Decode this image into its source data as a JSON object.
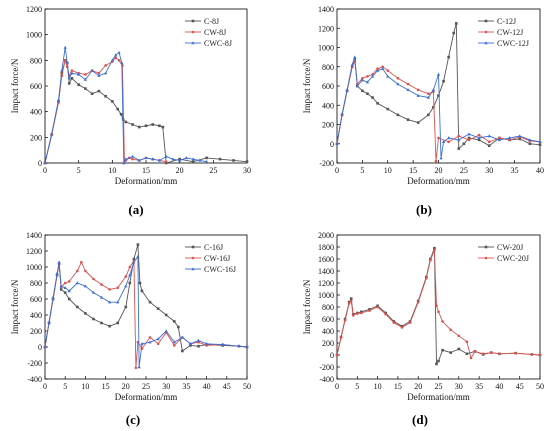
{
  "chart_data": [
    {
      "type": "line",
      "panel_label": "(a)",
      "xlabel": "Deformation/mm",
      "ylabel": "Impact force/N",
      "xlim": [
        0,
        30
      ],
      "ylim": [
        0,
        1200
      ],
      "xticks": [
        0,
        5,
        10,
        15,
        20,
        25,
        30
      ],
      "yticks": [
        0,
        200,
        400,
        600,
        800,
        1000,
        1200
      ],
      "legend_position": "top-right",
      "series": [
        {
          "name": "C-8J",
          "color": "#555555",
          "marker": "square",
          "x": [
            0,
            1,
            2,
            2.5,
            3,
            3.3,
            3.6,
            4,
            5,
            6,
            7,
            8,
            9,
            10,
            10.8,
            11.3,
            11.6,
            12,
            13,
            14,
            15,
            16,
            17,
            17.5,
            18,
            20,
            22,
            24,
            26,
            28,
            30
          ],
          "y": [
            0,
            220,
            480,
            700,
            800,
            780,
            620,
            660,
            610,
            580,
            540,
            560,
            520,
            480,
            420,
            380,
            340,
            320,
            300,
            280,
            290,
            300,
            290,
            280,
            0,
            30,
            10,
            40,
            30,
            20,
            10
          ]
        },
        {
          "name": "CW-8J",
          "color": "#d9534f",
          "marker": "circle",
          "x": [
            0,
            1,
            2,
            2.5,
            3,
            3.3,
            3.6,
            4,
            5,
            6,
            7,
            8,
            9,
            10,
            10.5,
            11,
            11.5,
            11.8,
            12,
            12.5,
            13,
            14,
            15,
            16,
            17,
            18
          ],
          "y": [
            0,
            220,
            470,
            680,
            800,
            750,
            680,
            720,
            700,
            690,
            720,
            700,
            760,
            790,
            820,
            800,
            760,
            0,
            20,
            40,
            30,
            20,
            40,
            30,
            20,
            10
          ]
        },
        {
          "name": "CWC-8J",
          "color": "#3b6fd6",
          "marker": "triangle",
          "x": [
            0,
            1,
            2,
            2.5,
            3,
            3.3,
            3.6,
            4,
            5,
            6,
            7,
            8,
            9,
            10,
            10.5,
            11,
            11.4,
            11.7,
            12,
            13,
            14,
            15,
            16,
            17,
            18,
            19,
            20,
            21,
            22,
            23,
            24
          ],
          "y": [
            0,
            230,
            490,
            720,
            900,
            780,
            660,
            700,
            690,
            650,
            720,
            680,
            700,
            800,
            840,
            860,
            780,
            0,
            30,
            50,
            20,
            40,
            30,
            20,
            50,
            30,
            20,
            40,
            30,
            20,
            10
          ]
        }
      ]
    },
    {
      "type": "line",
      "panel_label": "(b)",
      "xlabel": "Deformation/mm",
      "ylabel": "Impact force/N",
      "xlim": [
        0,
        40
      ],
      "ylim": [
        -200,
        1400
      ],
      "xticks": [
        0,
        5,
        10,
        15,
        20,
        25,
        30,
        35,
        40
      ],
      "yticks": [
        -200,
        0,
        200,
        400,
        600,
        800,
        1000,
        1200,
        1400
      ],
      "legend_position": "top-right",
      "series": [
        {
          "name": "C-12J",
          "color": "#555555",
          "marker": "square",
          "x": [
            0,
            1,
            2,
            3,
            3.5,
            4,
            5,
            6,
            7,
            8,
            10,
            12,
            14,
            16,
            18,
            19,
            20,
            21,
            22,
            23,
            23.5,
            24,
            25,
            26,
            28,
            30,
            32,
            34,
            36,
            38,
            40
          ],
          "y": [
            0,
            300,
            550,
            800,
            880,
            600,
            550,
            520,
            480,
            420,
            360,
            300,
            250,
            220,
            300,
            380,
            500,
            650,
            900,
            1150,
            1250,
            -50,
            0,
            60,
            40,
            -20,
            60,
            40,
            50,
            0,
            -10
          ]
        },
        {
          "name": "CW-12J",
          "color": "#d9534f",
          "marker": "circle",
          "x": [
            0,
            1,
            2,
            3,
            3.5,
            4,
            5,
            6,
            7,
            8,
            9,
            10,
            12,
            14,
            16,
            18,
            19,
            19.5,
            20,
            22,
            24,
            26,
            28,
            30,
            32,
            34,
            36,
            38,
            40
          ],
          "y": [
            0,
            300,
            550,
            800,
            860,
            620,
            680,
            700,
            720,
            780,
            800,
            760,
            680,
            620,
            560,
            520,
            540,
            -180,
            60,
            20,
            80,
            40,
            90,
            20,
            60,
            40,
            70,
            30,
            20
          ]
        },
        {
          "name": "CWC-12J",
          "color": "#3b6fd6",
          "marker": "triangle",
          "x": [
            0,
            1,
            2,
            3,
            3.5,
            4,
            5,
            6,
            7,
            8,
            9,
            10,
            12,
            14,
            16,
            18,
            19,
            20,
            20.5,
            21,
            22,
            24,
            26,
            28,
            30,
            32,
            34,
            36,
            38,
            40
          ],
          "y": [
            0,
            310,
            560,
            820,
            900,
            600,
            660,
            640,
            700,
            760,
            780,
            700,
            620,
            560,
            500,
            480,
            560,
            720,
            -150,
            20,
            60,
            40,
            100,
            60,
            80,
            40,
            60,
            80,
            40,
            20
          ]
        }
      ]
    },
    {
      "type": "line",
      "panel_label": "(c)",
      "xlabel": "Deformation/mm",
      "ylabel": "Impact force/N",
      "xlim": [
        0,
        50
      ],
      "ylim": [
        -400,
        1400
      ],
      "xticks": [
        0,
        5,
        10,
        15,
        20,
        25,
        30,
        35,
        40,
        45,
        50
      ],
      "yticks": [
        -400,
        -200,
        0,
        200,
        400,
        600,
        800,
        1000,
        1200,
        1400
      ],
      "legend_position": "top-right",
      "series": [
        {
          "name": "C-16J",
          "color": "#555555",
          "marker": "square",
          "x": [
            0,
            1,
            2,
            3,
            3.5,
            4,
            5,
            6,
            8,
            10,
            12,
            14,
            16,
            18,
            20,
            21,
            22,
            23,
            23.5,
            24,
            26,
            28,
            30,
            32,
            33,
            34,
            36,
            38,
            40,
            44,
            48,
            50
          ],
          "y": [
            0,
            300,
            600,
            900,
            1040,
            720,
            680,
            600,
            500,
            420,
            350,
            300,
            260,
            300,
            500,
            800,
            1100,
            1280,
            800,
            700,
            560,
            480,
            400,
            320,
            250,
            -50,
            20,
            10,
            30,
            20,
            10,
            0
          ]
        },
        {
          "name": "CW-16J",
          "color": "#d9534f",
          "marker": "circle",
          "x": [
            0,
            1,
            2,
            3,
            3.5,
            4,
            5,
            6,
            8,
            9,
            10,
            12,
            14,
            16,
            18,
            20,
            21,
            22,
            22.5,
            23,
            24,
            26,
            28,
            30,
            32,
            34,
            36,
            38,
            40,
            44,
            48,
            50
          ],
          "y": [
            0,
            300,
            600,
            900,
            1040,
            750,
            800,
            820,
            950,
            1060,
            950,
            850,
            780,
            720,
            740,
            880,
            1000,
            1080,
            -260,
            60,
            -20,
            120,
            40,
            180,
            20,
            120,
            40,
            60,
            20,
            30,
            10,
            0
          ]
        },
        {
          "name": "CWC-16J",
          "color": "#3b6fd6",
          "marker": "triangle",
          "x": [
            0,
            1,
            2,
            3,
            3.5,
            4,
            5,
            6,
            8,
            10,
            12,
            14,
            16,
            18,
            20,
            21,
            22,
            23,
            23.3,
            24,
            26,
            28,
            30,
            32,
            34,
            36,
            38,
            40,
            44,
            48,
            50
          ],
          "y": [
            0,
            310,
            620,
            920,
            1060,
            760,
            740,
            700,
            800,
            760,
            680,
            620,
            560,
            560,
            760,
            900,
            1060,
            1130,
            -250,
            40,
            60,
            100,
            200,
            60,
            120,
            40,
            80,
            40,
            30,
            10,
            0
          ]
        }
      ]
    },
    {
      "type": "line",
      "panel_label": "(d)",
      "xlabel": "Deformation/mm",
      "ylabel": "Impact force/N",
      "xlim": [
        0,
        50
      ],
      "ylim": [
        -400,
        2000
      ],
      "xticks": [
        0,
        5,
        10,
        15,
        20,
        25,
        30,
        35,
        40,
        45,
        50
      ],
      "yticks": [
        -400,
        -200,
        0,
        200,
        400,
        600,
        800,
        1000,
        1200,
        1400,
        1600,
        1800,
        2000
      ],
      "legend_position": "top-right",
      "series": [
        {
          "name": "CW-20J",
          "color": "#555555",
          "marker": "square",
          "x": [
            0,
            1,
            2,
            3,
            3.5,
            4,
            5,
            6,
            8,
            10,
            12,
            14,
            16,
            18,
            20,
            22,
            23,
            24,
            24.5,
            25,
            26,
            28,
            30,
            32,
            34,
            36,
            38,
            40,
            44,
            48,
            50
          ],
          "y": [
            0,
            300,
            600,
            880,
            940,
            680,
            700,
            720,
            760,
            820,
            700,
            560,
            480,
            560,
            900,
            1300,
            1600,
            1780,
            -150,
            -100,
            80,
            40,
            100,
            20,
            60,
            10,
            40,
            20,
            30,
            10,
            0
          ]
        },
        {
          "name": "CWC-20J",
          "color": "#d9534f",
          "marker": "circle",
          "x": [
            0,
            1,
            2,
            3,
            3.5,
            4,
            5,
            6,
            8,
            10,
            12,
            14,
            16,
            18,
            20,
            22,
            23,
            24,
            24.5,
            25,
            26,
            28,
            30,
            32,
            33,
            34,
            36,
            38,
            40,
            44,
            48,
            50
          ],
          "y": [
            0,
            290,
            580,
            860,
            900,
            660,
            690,
            700,
            740,
            800,
            680,
            540,
            460,
            540,
            880,
            1280,
            1580,
            1750,
            820,
            720,
            560,
            420,
            320,
            220,
            -50,
            60,
            20,
            40,
            20,
            30,
            10,
            0
          ]
        }
      ]
    }
  ]
}
